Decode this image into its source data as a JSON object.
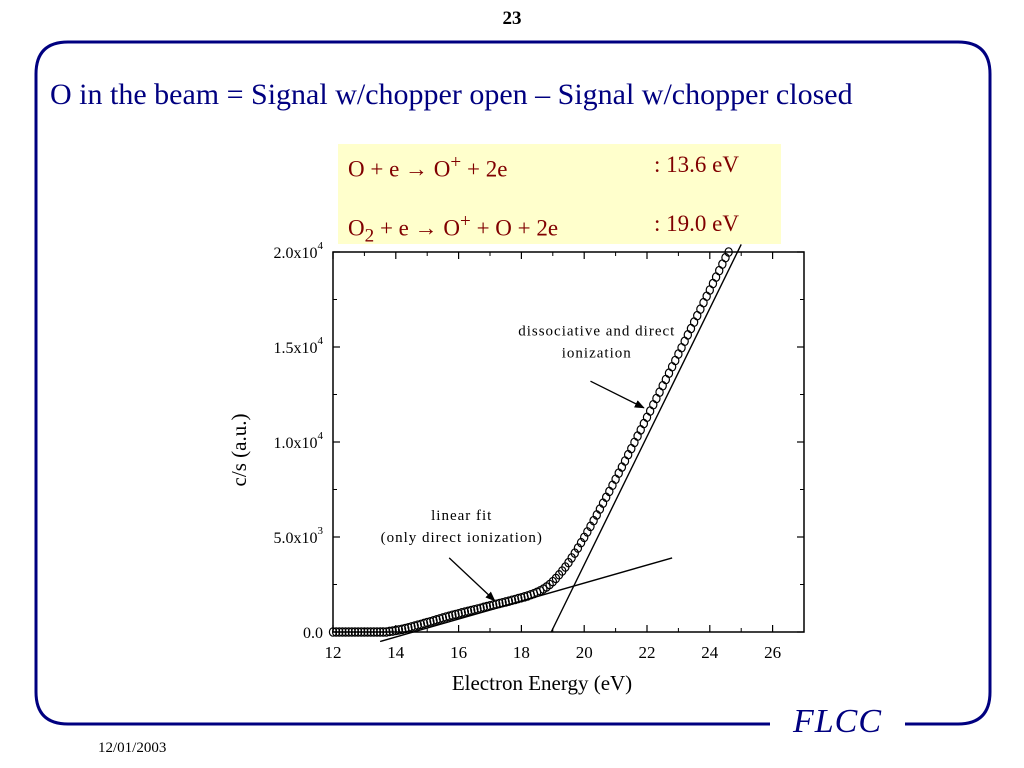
{
  "slide": {
    "page_number": "23",
    "title": "O in the beam = Signal w/chopper open – Signal w/chopper closed",
    "footer_logo": "FLCC",
    "footer_date": "12/01/2003",
    "colors": {
      "frame": "#000080",
      "reaction_text": "#800000",
      "box_bg": "#ffffcc"
    }
  },
  "reactions": [
    {
      "reactant": "O",
      "reactant_sub": "",
      "rest": " + e → O",
      "ion_sup": "+",
      "products": " + 2e",
      "energy": ": 13.6 eV"
    },
    {
      "reactant": "O",
      "reactant_sub": "2",
      "rest": "  + e → O",
      "ion_sup": "+",
      "products": " + O + 2e",
      "energy": ": 19.0 eV"
    }
  ],
  "chart_data": {
    "type": "scatter",
    "xlabel": "Electron Energy (eV)",
    "ylabel": "c/s (a.u.)",
    "xlim": [
      12,
      27
    ],
    "ylim": [
      0,
      20000
    ],
    "x_ticks": [
      {
        "value": 12,
        "label": "12"
      },
      {
        "value": 14,
        "label": "14"
      },
      {
        "value": 16,
        "label": "16"
      },
      {
        "value": 18,
        "label": "18"
      },
      {
        "value": 20,
        "label": "20"
      },
      {
        "value": 22,
        "label": "22"
      },
      {
        "value": 24,
        "label": "24"
      },
      {
        "value": 26,
        "label": "26"
      }
    ],
    "y_ticks": [
      {
        "value": 0,
        "mantissa": "0.0",
        "exp": ""
      },
      {
        "value": 5000,
        "mantissa": "5.0x10",
        "exp": "3"
      },
      {
        "value": 10000,
        "mantissa": "1.0x10",
        "exp": "4"
      },
      {
        "value": 15000,
        "mantissa": "1.5x10",
        "exp": "4"
      },
      {
        "value": 20000,
        "mantissa": "2.0x10",
        "exp": "4"
      }
    ],
    "grid": false,
    "points": [
      [
        12.0,
        0
      ],
      [
        12.1,
        0
      ],
      [
        12.2,
        0
      ],
      [
        12.3,
        0
      ],
      [
        12.4,
        0
      ],
      [
        12.5,
        0
      ],
      [
        12.6,
        0
      ],
      [
        12.7,
        0
      ],
      [
        12.8,
        0
      ],
      [
        12.9,
        0
      ],
      [
        13.0,
        0
      ],
      [
        13.1,
        0
      ],
      [
        13.2,
        0
      ],
      [
        13.3,
        0
      ],
      [
        13.4,
        0
      ],
      [
        13.5,
        0
      ],
      [
        13.6,
        0
      ],
      [
        13.7,
        0
      ],
      [
        13.8,
        30
      ],
      [
        13.9,
        50
      ],
      [
        14.0,
        80
      ],
      [
        14.1,
        110
      ],
      [
        14.2,
        140
      ],
      [
        14.3,
        180
      ],
      [
        14.4,
        220
      ],
      [
        14.5,
        270
      ],
      [
        14.6,
        310
      ],
      [
        14.7,
        360
      ],
      [
        14.8,
        400
      ],
      [
        14.9,
        450
      ],
      [
        15.0,
        500
      ],
      [
        15.1,
        540
      ],
      [
        15.2,
        590
      ],
      [
        15.3,
        640
      ],
      [
        15.4,
        690
      ],
      [
        15.5,
        740
      ],
      [
        15.6,
        790
      ],
      [
        15.7,
        830
      ],
      [
        15.8,
        880
      ],
      [
        15.9,
        920
      ],
      [
        16.0,
        960
      ],
      [
        16.1,
        1010
      ],
      [
        16.2,
        1050
      ],
      [
        16.3,
        1090
      ],
      [
        16.4,
        1130
      ],
      [
        16.5,
        1170
      ],
      [
        16.6,
        1210
      ],
      [
        16.7,
        1250
      ],
      [
        16.8,
        1300
      ],
      [
        16.9,
        1340
      ],
      [
        17.0,
        1380
      ],
      [
        17.1,
        1420
      ],
      [
        17.2,
        1460
      ],
      [
        17.3,
        1500
      ],
      [
        17.4,
        1540
      ],
      [
        17.5,
        1580
      ],
      [
        17.6,
        1620
      ],
      [
        17.7,
        1670
      ],
      [
        17.8,
        1710
      ],
      [
        17.9,
        1760
      ],
      [
        18.0,
        1800
      ],
      [
        18.1,
        1850
      ],
      [
        18.2,
        1900
      ],
      [
        18.3,
        1960
      ],
      [
        18.4,
        2020
      ],
      [
        18.5,
        2090
      ],
      [
        18.6,
        2170
      ],
      [
        18.7,
        2260
      ],
      [
        18.8,
        2370
      ],
      [
        18.9,
        2500
      ],
      [
        19.0,
        2650
      ],
      [
        19.1,
        2820
      ],
      [
        19.2,
        3010
      ],
      [
        19.3,
        3210
      ],
      [
        19.4,
        3420
      ],
      [
        19.5,
        3650
      ],
      [
        19.6,
        3900
      ],
      [
        19.7,
        4150
      ],
      [
        19.8,
        4420
      ],
      [
        19.9,
        4700
      ],
      [
        20.0,
        4980
      ],
      [
        20.1,
        5270
      ],
      [
        20.2,
        5560
      ],
      [
        20.3,
        5860
      ],
      [
        20.4,
        6160
      ],
      [
        20.5,
        6470
      ],
      [
        20.6,
        6780
      ],
      [
        20.7,
        7090
      ],
      [
        20.8,
        7400
      ],
      [
        20.9,
        7720
      ],
      [
        21.0,
        8040
      ],
      [
        21.1,
        8360
      ],
      [
        21.2,
        8680
      ],
      [
        21.3,
        9000
      ],
      [
        21.4,
        9330
      ],
      [
        21.5,
        9650
      ],
      [
        21.6,
        9980
      ],
      [
        21.7,
        10310
      ],
      [
        21.8,
        10640
      ],
      [
        21.9,
        10970
      ],
      [
        22.0,
        11300
      ],
      [
        22.1,
        11630
      ],
      [
        22.2,
        11960
      ],
      [
        22.3,
        12290
      ],
      [
        22.4,
        12620
      ],
      [
        22.5,
        12960
      ],
      [
        22.6,
        13290
      ],
      [
        22.7,
        13620
      ],
      [
        22.8,
        13960
      ],
      [
        22.9,
        14290
      ],
      [
        23.0,
        14630
      ],
      [
        23.1,
        14960
      ],
      [
        23.2,
        15300
      ],
      [
        23.3,
        15640
      ],
      [
        23.4,
        15970
      ],
      [
        23.5,
        16310
      ],
      [
        23.6,
        16650
      ],
      [
        23.7,
        16990
      ],
      [
        23.8,
        17330
      ],
      [
        23.9,
        17670
      ],
      [
        24.0,
        18000
      ],
      [
        24.1,
        18340
      ],
      [
        24.2,
        18680
      ],
      [
        24.3,
        19020
      ],
      [
        24.4,
        19360
      ],
      [
        24.5,
        19700
      ],
      [
        24.6,
        20000
      ]
    ],
    "fit_lines": [
      {
        "name": "linear fit (only direct ionization)",
        "x": [
          13.5,
          22.8
        ],
        "y": [
          -500,
          3900
        ]
      },
      {
        "name": "dissociative and direct ionization",
        "x": [
          18.95,
          25.0
        ],
        "y": [
          0,
          20400
        ]
      }
    ],
    "annotations": [
      {
        "lines": [
          "dissociative and direct",
          "ionization"
        ],
        "text_x": 20.4,
        "text_y": 15600,
        "arrow_from": [
          20.2,
          13200
        ],
        "arrow_to": [
          21.9,
          11800
        ]
      },
      {
        "lines": [
          "linear fit",
          "(only direct ionization)"
        ],
        "text_x": 16.1,
        "text_y": 5900,
        "arrow_from": [
          15.7,
          3900
        ],
        "arrow_to": [
          17.15,
          1650
        ]
      }
    ]
  }
}
